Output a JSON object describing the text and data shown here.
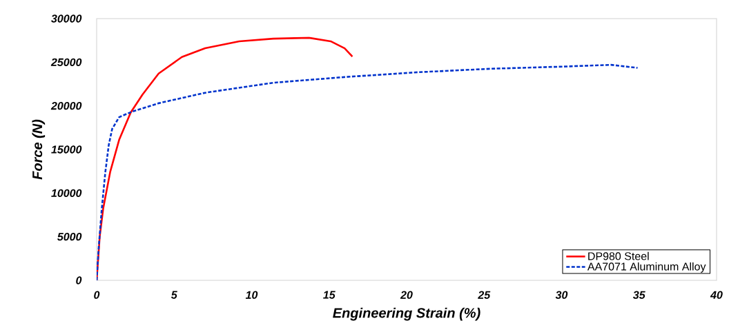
{
  "chart_data": {
    "type": "line",
    "xlabel": "Engineering Strain (%)",
    "ylabel": "Force (N)",
    "xlim": [
      0,
      40
    ],
    "xticks": [
      0,
      5,
      10,
      15,
      20,
      25,
      30,
      35,
      40
    ],
    "ylim": [
      0,
      30000
    ],
    "yticks": [
      0,
      5000,
      10000,
      15000,
      20000,
      25000,
      30000
    ],
    "grid": false,
    "legend": "bottom right",
    "marker": "none",
    "series": [
      {
        "name": "DP980 Steel",
        "color": "#ff0000",
        "line_style": "solid",
        "x": [
          0,
          0.2,
          0.42,
          0.87,
          1.45,
          2.2,
          2.96,
          4.0,
          5.5,
          7.0,
          9.2,
          11.4,
          13.7,
          15.1,
          16.0,
          16.5
        ],
        "values": [
          0,
          5050,
          8200,
          12400,
          16100,
          19250,
          21300,
          23700,
          25600,
          26600,
          27400,
          27700,
          27800,
          27400,
          26600,
          25650
        ]
      },
      {
        "name": "AA7071 Aluminum Alloy",
        "color": "#0033cc",
        "line_style": "dashed",
        "x": [
          0,
          0.13,
          0.33,
          0.56,
          0.78,
          1.0,
          1.45,
          2.3,
          4.0,
          7.0,
          11.4,
          16.0,
          20.7,
          25.4,
          30.1,
          33.2,
          34.9
        ],
        "values": [
          0,
          3700,
          8200,
          12400,
          15500,
          17350,
          18700,
          19350,
          20300,
          21500,
          22650,
          23300,
          23850,
          24250,
          24500,
          24700,
          24350
        ]
      }
    ]
  }
}
